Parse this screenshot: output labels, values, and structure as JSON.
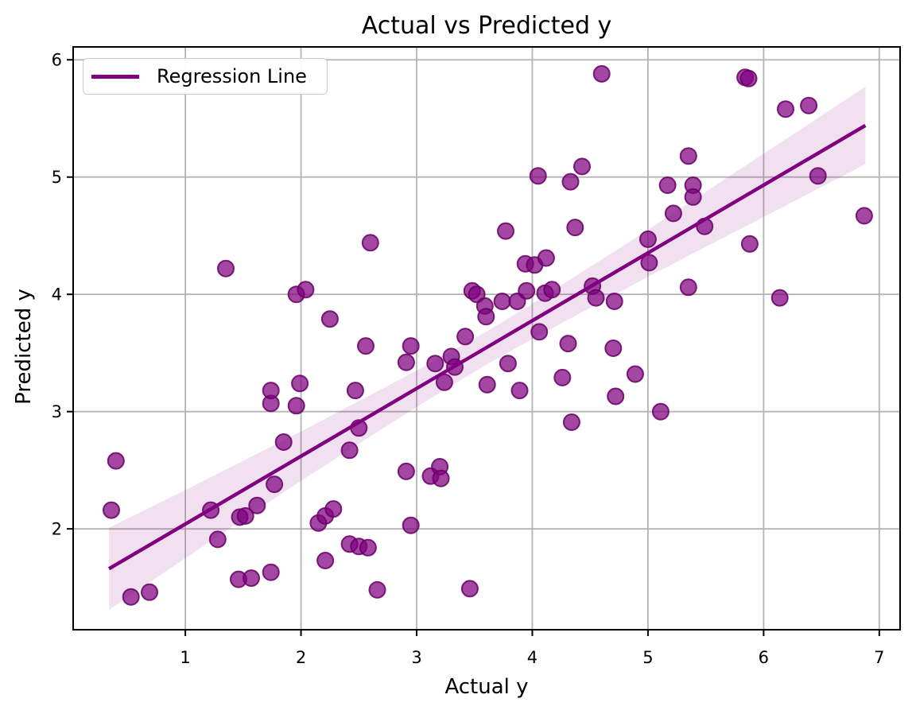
{
  "chart_data": {
    "type": "scatter",
    "title": "Actual vs Predicted y",
    "xlabel": "Actual y",
    "ylabel": "Predicted y",
    "xlim": [
      0.03,
      7.18
    ],
    "ylim": [
      1.14,
      6.11
    ],
    "xticks": [
      1,
      2,
      3,
      4,
      5,
      6,
      7
    ],
    "yticks": [
      2,
      3,
      4,
      5,
      6
    ],
    "grid": true,
    "legend": {
      "position": "upper left",
      "entries": [
        "Regression Line"
      ]
    },
    "points": [
      [
        0.36,
        2.16
      ],
      [
        0.4,
        2.58
      ],
      [
        0.53,
        1.42
      ],
      [
        0.69,
        1.46
      ],
      [
        1.22,
        2.16
      ],
      [
        1.28,
        1.91
      ],
      [
        1.35,
        4.22
      ],
      [
        1.46,
        1.57
      ],
      [
        1.47,
        2.1
      ],
      [
        1.52,
        2.11
      ],
      [
        1.57,
        1.58
      ],
      [
        1.62,
        2.2
      ],
      [
        1.74,
        1.63
      ],
      [
        1.74,
        3.07
      ],
      [
        1.74,
        3.18
      ],
      [
        1.77,
        2.38
      ],
      [
        1.85,
        2.74
      ],
      [
        1.96,
        3.05
      ],
      [
        1.96,
        4.0
      ],
      [
        1.99,
        3.24
      ],
      [
        2.04,
        4.04
      ],
      [
        2.15,
        2.05
      ],
      [
        2.21,
        1.73
      ],
      [
        2.21,
        2.11
      ],
      [
        2.25,
        3.79
      ],
      [
        2.28,
        2.17
      ],
      [
        2.42,
        1.87
      ],
      [
        2.42,
        2.67
      ],
      [
        2.47,
        3.18
      ],
      [
        2.5,
        1.85
      ],
      [
        2.5,
        2.86
      ],
      [
        2.56,
        3.56
      ],
      [
        2.58,
        1.84
      ],
      [
        2.6,
        4.44
      ],
      [
        2.66,
        1.48
      ],
      [
        2.91,
        2.49
      ],
      [
        2.91,
        3.42
      ],
      [
        2.95,
        2.03
      ],
      [
        2.95,
        3.56
      ],
      [
        3.12,
        2.45
      ],
      [
        3.16,
        3.41
      ],
      [
        3.2,
        2.53
      ],
      [
        3.21,
        2.43
      ],
      [
        3.24,
        3.25
      ],
      [
        3.3,
        3.47
      ],
      [
        3.33,
        3.38
      ],
      [
        3.42,
        3.64
      ],
      [
        3.46,
        1.49
      ],
      [
        3.48,
        4.03
      ],
      [
        3.52,
        4.0
      ],
      [
        3.59,
        3.9
      ],
      [
        3.6,
        3.81
      ],
      [
        3.61,
        3.23
      ],
      [
        3.74,
        3.94
      ],
      [
        3.77,
        4.54
      ],
      [
        3.79,
        3.41
      ],
      [
        3.87,
        3.94
      ],
      [
        3.89,
        3.18
      ],
      [
        3.94,
        4.26
      ],
      [
        3.95,
        4.03
      ],
      [
        4.02,
        4.25
      ],
      [
        4.05,
        5.01
      ],
      [
        4.06,
        3.68
      ],
      [
        4.11,
        4.01
      ],
      [
        4.12,
        4.31
      ],
      [
        4.17,
        4.04
      ],
      [
        4.26,
        3.29
      ],
      [
        4.31,
        3.58
      ],
      [
        4.33,
        4.96
      ],
      [
        4.34,
        2.91
      ],
      [
        4.37,
        4.57
      ],
      [
        4.43,
        5.09
      ],
      [
        4.52,
        4.07
      ],
      [
        4.55,
        3.97
      ],
      [
        4.6,
        5.88
      ],
      [
        4.7,
        3.54
      ],
      [
        4.71,
        3.94
      ],
      [
        4.72,
        3.13
      ],
      [
        4.89,
        3.32
      ],
      [
        5.0,
        4.47
      ],
      [
        5.01,
        4.27
      ],
      [
        5.11,
        3.0
      ],
      [
        5.17,
        4.93
      ],
      [
        5.22,
        4.69
      ],
      [
        5.35,
        4.06
      ],
      [
        5.35,
        5.18
      ],
      [
        5.39,
        4.93
      ],
      [
        5.39,
        4.83
      ],
      [
        5.49,
        4.58
      ],
      [
        5.84,
        5.85
      ],
      [
        5.87,
        5.84
      ],
      [
        5.88,
        4.43
      ],
      [
        6.14,
        3.97
      ],
      [
        6.19,
        5.58
      ],
      [
        6.39,
        5.61
      ],
      [
        6.47,
        5.01
      ],
      [
        6.87,
        4.67
      ]
    ],
    "regression_line": {
      "x": [
        0.34,
        6.88
      ],
      "y": [
        1.66,
        5.44
      ],
      "equation_estimate": "y = 1.46 + 0.58x"
    },
    "confidence_band": {
      "x": [
        0.34,
        1.0,
        2.0,
        3.0,
        3.6,
        4.0,
        5.0,
        6.0,
        6.88
      ],
      "upper": [
        2.01,
        2.33,
        2.83,
        3.35,
        3.68,
        3.92,
        4.55,
        5.2,
        5.77
      ],
      "lower": [
        1.31,
        1.75,
        2.41,
        3.04,
        3.4,
        3.62,
        4.15,
        4.66,
        5.11
      ]
    },
    "colors": {
      "scatter_fill": "rgba(128,0,128,0.72)",
      "scatter_edge": "rgba(102,0,102,0.85)",
      "line": "#800080",
      "band_fill": "rgba(128,0,128,0.12)",
      "grid": "#b4b4b4",
      "spine": "#000000",
      "text": "#000000"
    },
    "marker_radius_px": 10
  }
}
